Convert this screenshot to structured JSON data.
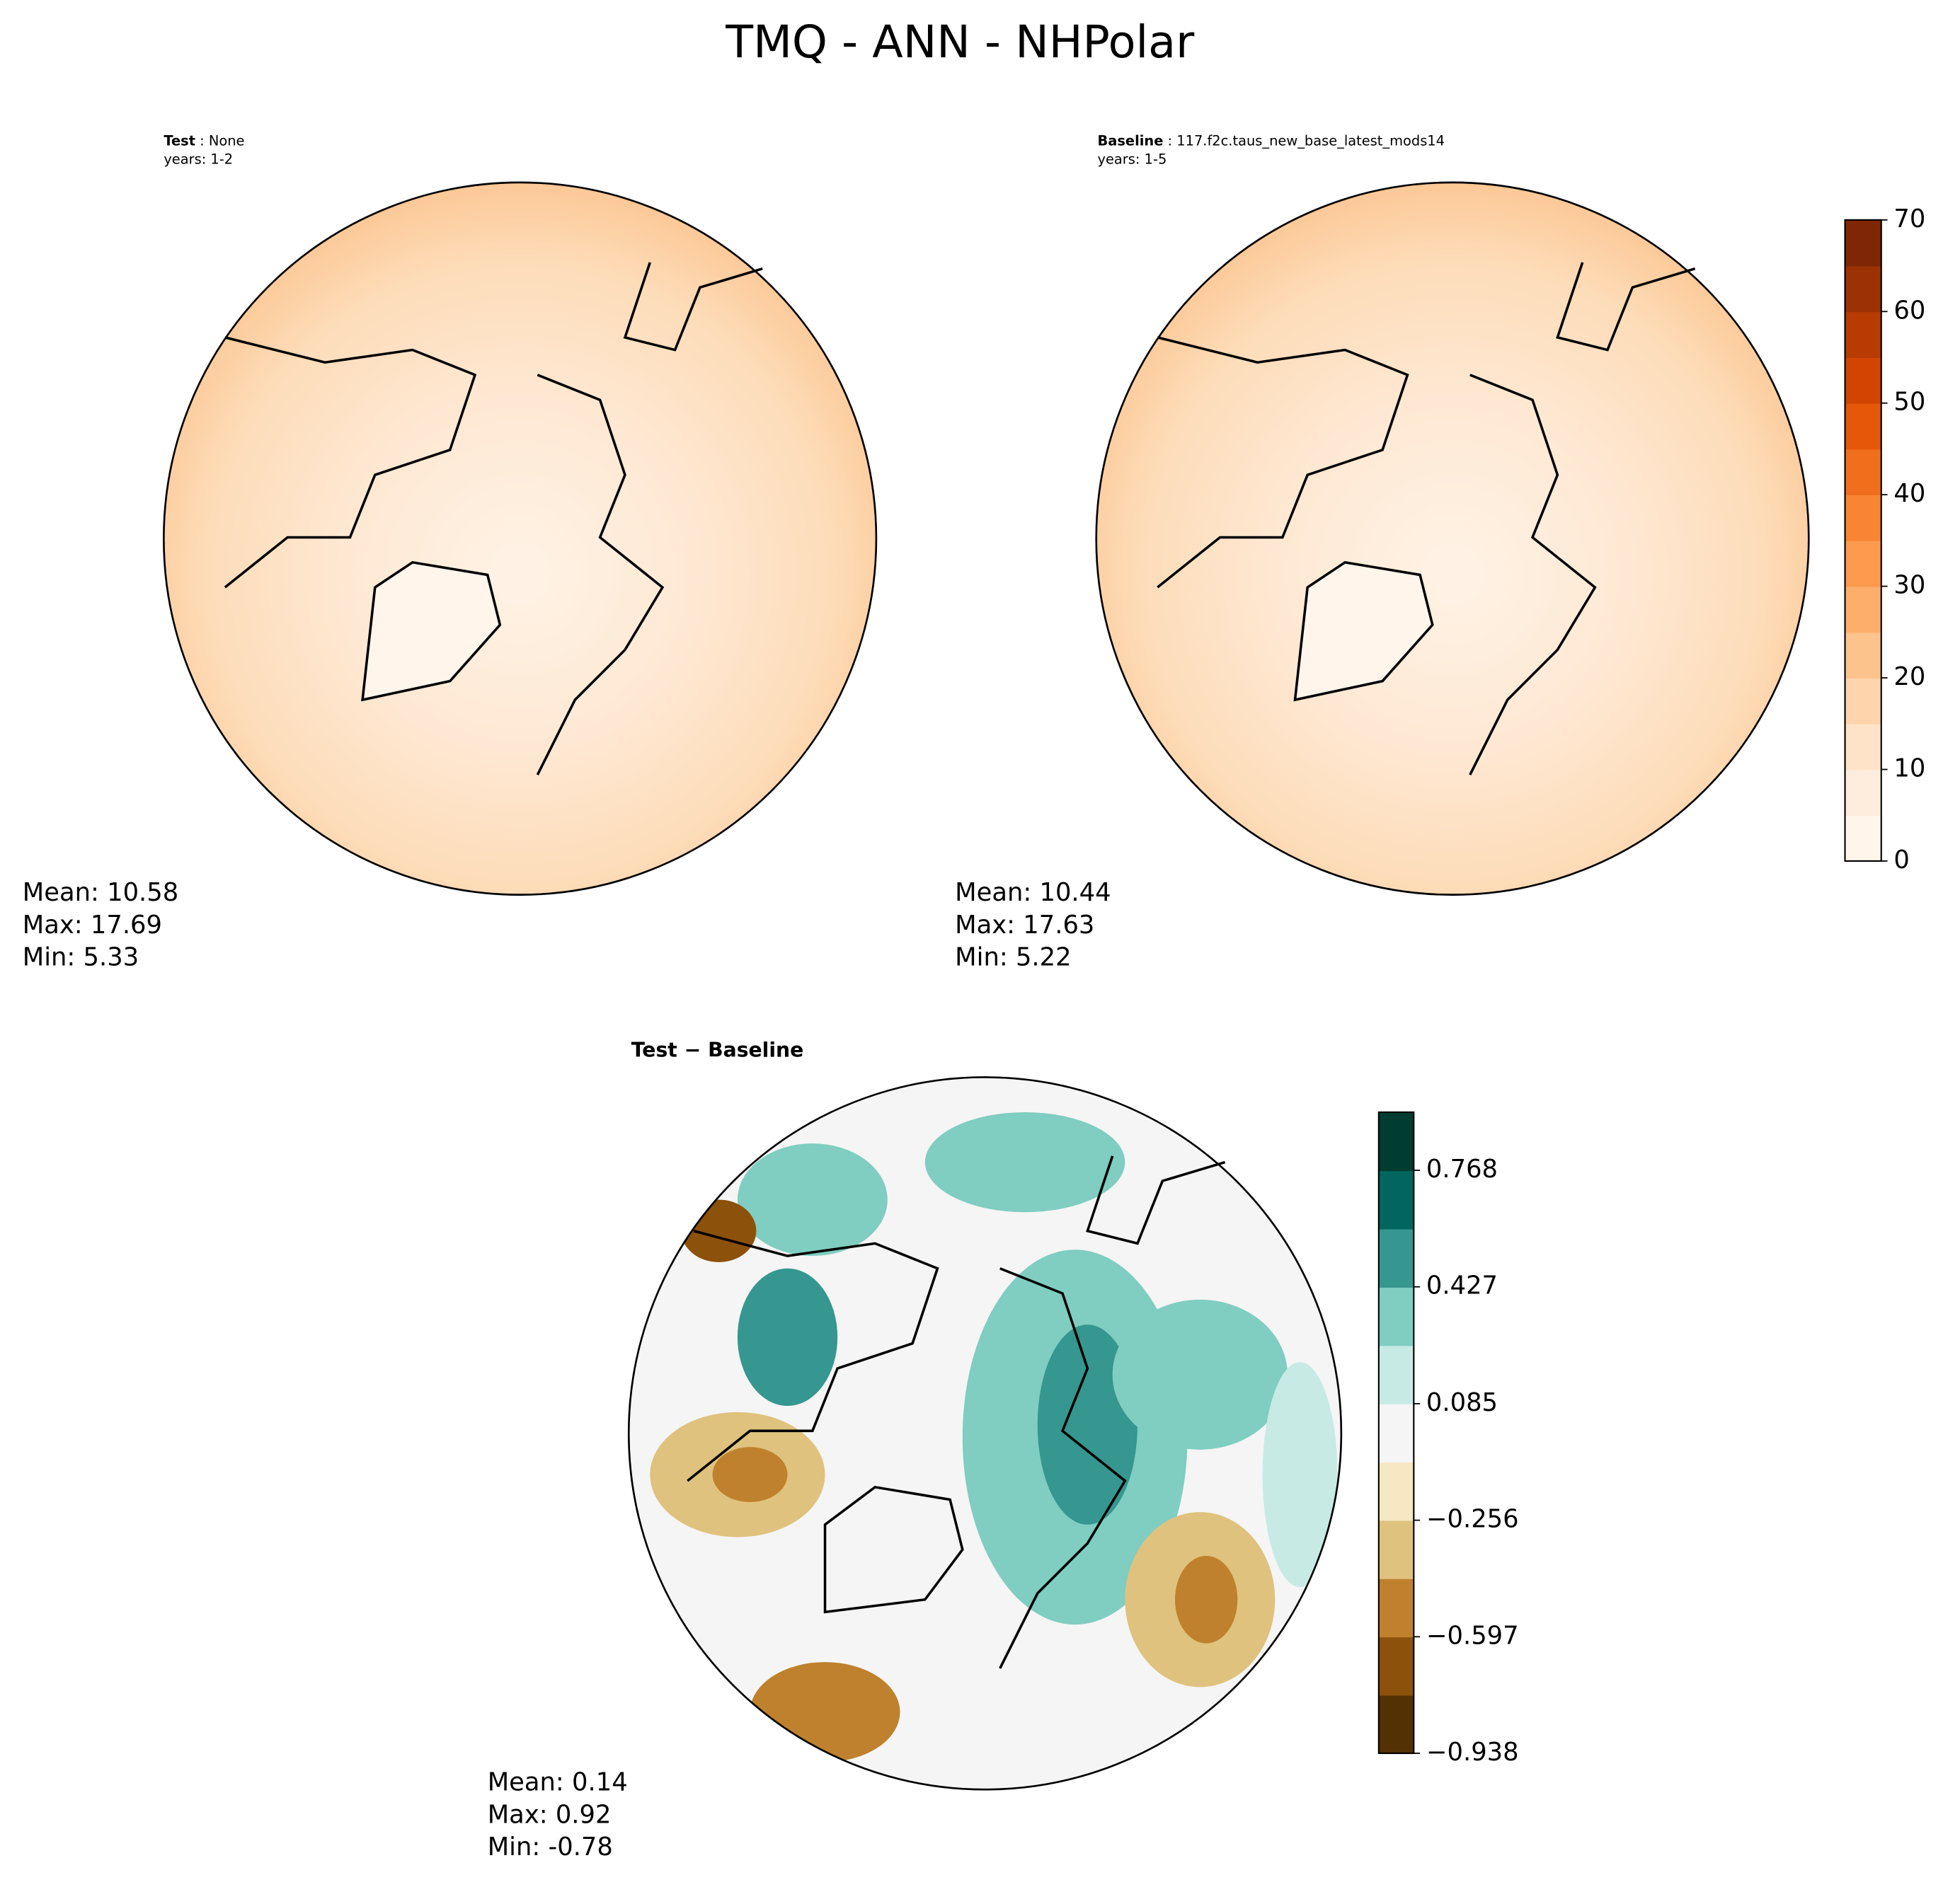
{
  "header": {
    "title": "TMQ - ANN - NHPolar"
  },
  "panels": [
    {
      "label": "Test",
      "name": "None",
      "years": "years: 1-2",
      "stats": [
        "Mean: 10.58",
        "Max: 17.69",
        "Min:  5.33"
      ]
    },
    {
      "label": "Baseline",
      "name": "117.f2c.taus_new_base_latest_mods14",
      "years": "years: 1-5",
      "stats": [
        "Mean: 10.44",
        "Max: 17.63",
        "Min:  5.22"
      ]
    },
    {
      "label": "Test − Baseline",
      "stats": [
        "Mean:  0.14",
        "Max:  0.92",
        "Min: -0.78"
      ]
    }
  ],
  "colorbars": [
    {
      "lim": [
        0,
        70
      ],
      "ticks": [
        0,
        10,
        20,
        30,
        40,
        50,
        60,
        70
      ],
      "colors": [
        "#fff5eb",
        "#feeddc",
        "#fee3c8",
        "#fdd4ab",
        "#fdc38d",
        "#fdae6b",
        "#fd9a4e",
        "#f98534",
        "#f16e1d",
        "#e55709",
        "#d14501",
        "#b83c02",
        "#9c3203",
        "#7f2704"
      ]
    },
    {
      "lim": [
        -0.938,
        0.938
      ],
      "ticks": [
        {
          "value": -0.938,
          "label": "−0.938"
        },
        {
          "value": -0.597,
          "label": "−0.597"
        },
        {
          "value": -0.256,
          "label": "−0.256"
        },
        0.085,
        0.427,
        0.768
      ],
      "colors": [
        "#543005",
        "#8c510a",
        "#bf812d",
        "#dfc27d",
        "#f6e8c3",
        "#f5f5f5",
        "#c7eae5",
        "#80cdc1",
        "#35978f",
        "#01665e",
        "#003c30"
      ]
    }
  ]
}
